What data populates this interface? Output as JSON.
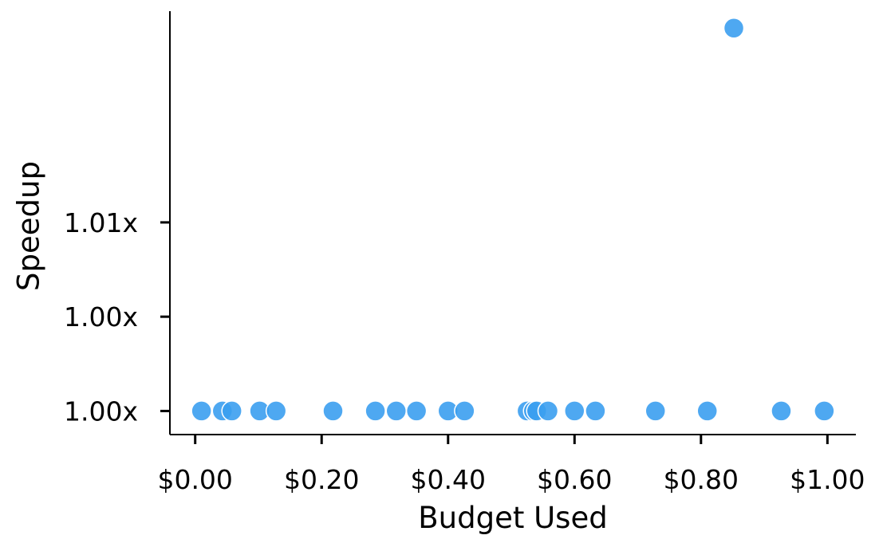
{
  "chart_data": {
    "type": "scatter",
    "xlabel": "Budget Used",
    "ylabel": "Speedup",
    "xlim": [
      -0.04,
      1.045
    ],
    "ylim": [
      0.99375,
      1.0162
    ],
    "x_ticks": [
      {
        "value": 0.0,
        "label": "$0.00"
      },
      {
        "value": 0.2,
        "label": "$0.20"
      },
      {
        "value": 0.4,
        "label": "$0.40"
      },
      {
        "value": 0.6,
        "label": "$0.60"
      },
      {
        "value": 0.8,
        "label": "$0.80"
      },
      {
        "value": 1.0,
        "label": "$1.00"
      }
    ],
    "y_ticks": [
      {
        "value": 0.995,
        "label": "1.00x"
      },
      {
        "value": 1.0,
        "label": "1.00x"
      },
      {
        "value": 1.005,
        "label": "1.01x"
      }
    ],
    "grid": false,
    "legend": "none",
    "marker_color": "#3b9ff0",
    "points": [
      {
        "x": 0.01,
        "y": 0.995
      },
      {
        "x": 0.043,
        "y": 0.995
      },
      {
        "x": 0.058,
        "y": 0.995
      },
      {
        "x": 0.102,
        "y": 0.995
      },
      {
        "x": 0.128,
        "y": 0.995
      },
      {
        "x": 0.218,
        "y": 0.995
      },
      {
        "x": 0.285,
        "y": 0.995
      },
      {
        "x": 0.318,
        "y": 0.995
      },
      {
        "x": 0.35,
        "y": 0.995
      },
      {
        "x": 0.4,
        "y": 0.995
      },
      {
        "x": 0.426,
        "y": 0.995
      },
      {
        "x": 0.525,
        "y": 0.995
      },
      {
        "x": 0.535,
        "y": 0.995
      },
      {
        "x": 0.54,
        "y": 0.995
      },
      {
        "x": 0.558,
        "y": 0.995
      },
      {
        "x": 0.6,
        "y": 0.995
      },
      {
        "x": 0.633,
        "y": 0.995
      },
      {
        "x": 0.728,
        "y": 0.995
      },
      {
        "x": 0.81,
        "y": 0.995
      },
      {
        "x": 0.852,
        "y": 1.0153
      },
      {
        "x": 0.927,
        "y": 0.995
      },
      {
        "x": 0.995,
        "y": 0.995
      }
    ]
  }
}
